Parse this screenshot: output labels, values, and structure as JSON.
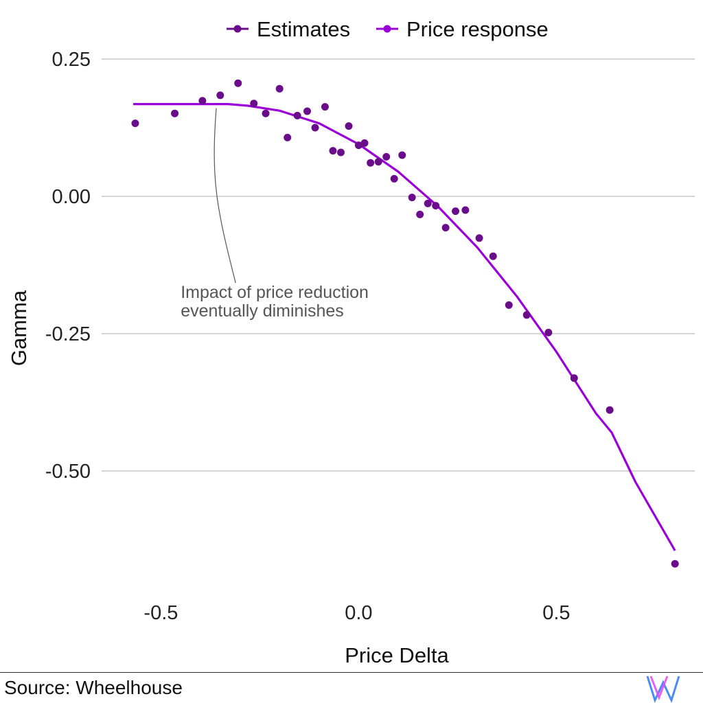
{
  "chart_data": {
    "type": "scatter",
    "title": "",
    "xlabel": "Price Delta",
    "ylabel": "Gamma",
    "xlim": [
      -0.65,
      0.85
    ],
    "ylim": [
      -0.73,
      0.27
    ],
    "x_ticks": [
      -0.5,
      0.0,
      0.5
    ],
    "x_tick_labels": [
      "-0.5",
      "0.0",
      "0.5"
    ],
    "y_ticks": [
      0.25,
      0.0,
      -0.25,
      -0.5
    ],
    "y_tick_labels": [
      "0.25",
      "0.00",
      "-0.25",
      "-0.50"
    ],
    "grid": "horizontal major",
    "legend": {
      "position": "top",
      "entries": [
        "Estimates",
        "Price response"
      ]
    },
    "series": [
      {
        "name": "Estimates",
        "kind": "points",
        "color": "#6a0d8a",
        "points": [
          [
            -0.565,
            0.133
          ],
          [
            -0.465,
            0.151
          ],
          [
            -0.395,
            0.174
          ],
          [
            -0.35,
            0.184
          ],
          [
            -0.305,
            0.206
          ],
          [
            -0.265,
            0.169
          ],
          [
            -0.235,
            0.151
          ],
          [
            -0.2,
            0.196
          ],
          [
            -0.18,
            0.107
          ],
          [
            -0.155,
            0.147
          ],
          [
            -0.13,
            0.155
          ],
          [
            -0.11,
            0.125
          ],
          [
            -0.085,
            0.163
          ],
          [
            -0.065,
            0.083
          ],
          [
            -0.045,
            0.08
          ],
          [
            -0.025,
            0.128
          ],
          [
            0.0,
            0.093
          ],
          [
            0.015,
            0.097
          ],
          [
            0.03,
            0.061
          ],
          [
            0.05,
            0.063
          ],
          [
            0.07,
            0.072
          ],
          [
            0.09,
            0.032
          ],
          [
            0.11,
            0.075
          ],
          [
            0.135,
            -0.002
          ],
          [
            0.155,
            -0.033
          ],
          [
            0.175,
            -0.013
          ],
          [
            0.195,
            -0.017
          ],
          [
            0.22,
            -0.057
          ],
          [
            0.245,
            -0.027
          ],
          [
            0.27,
            -0.025
          ],
          [
            0.305,
            -0.076
          ],
          [
            0.34,
            -0.109
          ],
          [
            0.38,
            -0.198
          ],
          [
            0.425,
            -0.216
          ],
          [
            0.48,
            -0.248
          ],
          [
            0.545,
            -0.331
          ],
          [
            0.635,
            -0.389
          ],
          [
            0.8,
            -0.669
          ]
        ]
      },
      {
        "name": "Price response",
        "kind": "line",
        "color": "#9b00d9",
        "points": [
          [
            -0.57,
            0.168
          ],
          [
            -0.5,
            0.168
          ],
          [
            -0.4,
            0.168
          ],
          [
            -0.33,
            0.168
          ],
          [
            -0.28,
            0.165
          ],
          [
            -0.2,
            0.156
          ],
          [
            -0.1,
            0.133
          ],
          [
            0.0,
            0.095
          ],
          [
            0.1,
            0.045
          ],
          [
            0.2,
            -0.018
          ],
          [
            0.3,
            -0.093
          ],
          [
            0.4,
            -0.182
          ],
          [
            0.5,
            -0.283
          ],
          [
            0.6,
            -0.395
          ],
          [
            0.64,
            -0.43
          ],
          [
            0.7,
            -0.52
          ],
          [
            0.8,
            -0.645
          ]
        ]
      }
    ],
    "annotations": [
      {
        "lines": [
          "Impact of price reduction",
          "eventually diminishes"
        ],
        "text_anchor": [
          -0.45,
          -0.185
        ],
        "points_to": [
          -0.36,
          0.168
        ]
      }
    ]
  },
  "caption": "Source: Wheelhouse",
  "logo": {
    "name": "wheelhouse-logo",
    "colors": [
      "#4a8cf7",
      "#e74cf0"
    ]
  }
}
